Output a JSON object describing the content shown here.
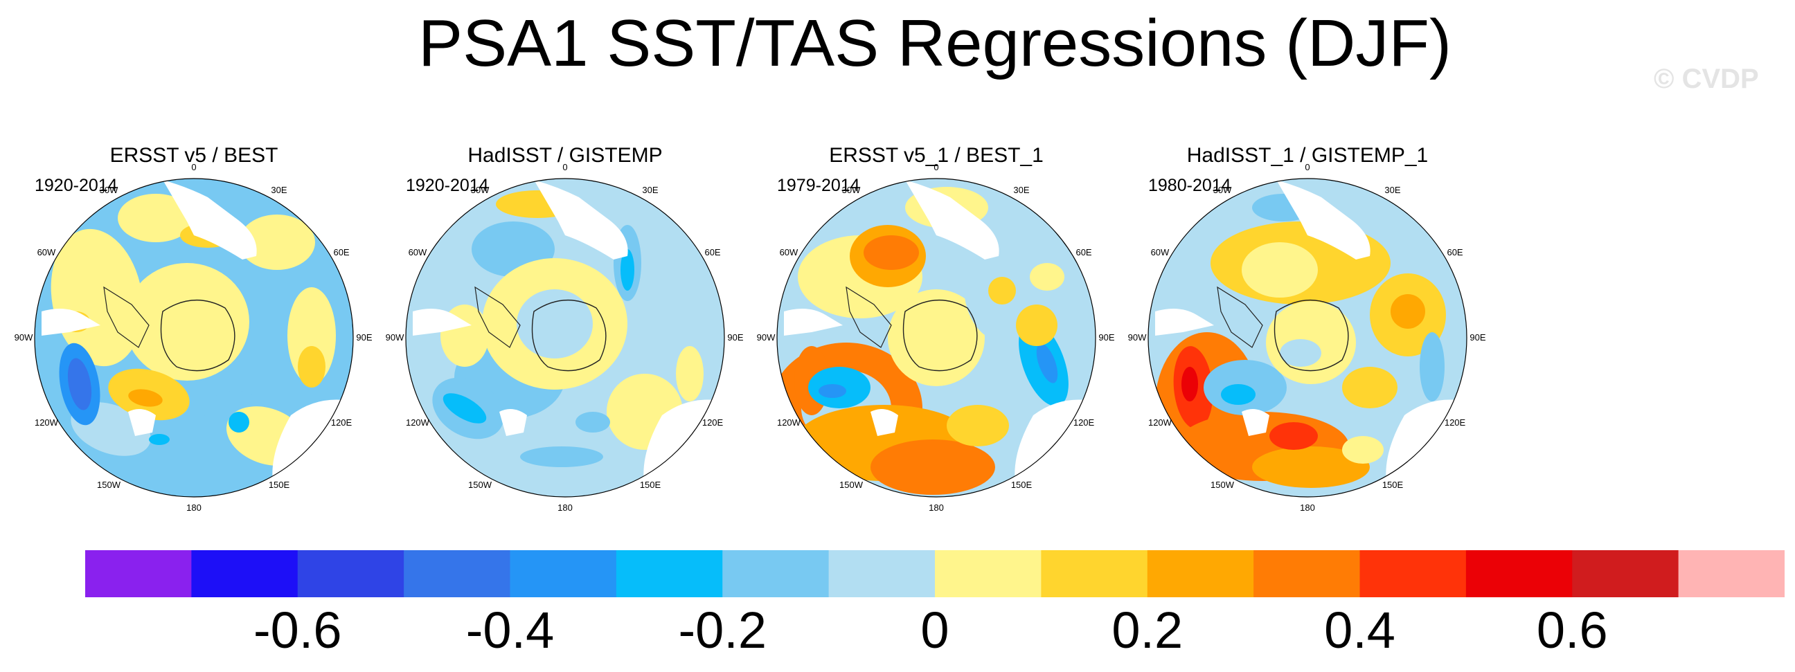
{
  "title": "PSA1 SST/TAS Regressions (DJF)",
  "watermark": "© CVDP",
  "panels": [
    {
      "title": "ERSST v5 / BEST",
      "period": "1920-2014"
    },
    {
      "title": "HadISST / GISTEMP",
      "period": "1920-2014"
    },
    {
      "title": "ERSST v5_1 / BEST_1",
      "period": "1979-2014"
    },
    {
      "title": "HadISST_1 / GISTEMP_1",
      "period": "1980-2014"
    }
  ],
  "longitude_labels": [
    "0",
    "30E",
    "60E",
    "90E",
    "120E",
    "150E",
    "180",
    "150W",
    "120W",
    "90W",
    "60W",
    "30W"
  ],
  "colorbar": {
    "colors": [
      "#8a21ee",
      "#1d0ff7",
      "#2f44e6",
      "#3575ea",
      "#2595f6",
      "#06bdfa",
      "#78c9f2",
      "#b2def2",
      "#fff58c",
      "#ffd52e",
      "#ffa802",
      "#ff7c05",
      "#ff3309",
      "#eb0106",
      "#d01c1e",
      "#ffb4b4"
    ],
    "tick_labels": [
      "-0.6",
      "-0.4",
      "-0.2",
      "0",
      "0.2",
      "0.4",
      "0.6"
    ]
  },
  "chart_data": {
    "type": "heatmap",
    "title": "PSA1 SST/TAS Regressions (DJF)",
    "projection": "south polar stereographic",
    "panels": [
      {
        "name": "ERSST v5 / BEST",
        "period": "1920-2014",
        "features": [
          {
            "region": "Antarctic continent",
            "value": 0.05
          },
          {
            "region": "Ring around Antarctica",
            "value": -0.15
          },
          {
            "region": "Amundsen-Bellingshausen Sea (120W)",
            "value": -0.3
          },
          {
            "region": "South Pacific (150W-180)",
            "value": 0.15
          },
          {
            "region": "Southern Indian Ocean (120E)",
            "value": 0.1
          },
          {
            "region": "South Atlantic (0-30E)",
            "value": 0.1
          }
        ]
      },
      {
        "name": "HadISST / GISTEMP",
        "period": "1920-2014",
        "features": [
          {
            "region": "Antarctic continent",
            "value": 0.05
          },
          {
            "region": "Southern Ocean (broad)",
            "value": -0.1
          },
          {
            "region": "South Pacific (150W)",
            "value": -0.2
          },
          {
            "region": "South Atlantic (0)",
            "value": 0.15
          },
          {
            "region": "Indian Ocean (60E)",
            "value": -0.2
          }
        ]
      },
      {
        "name": "ERSST v5_1 / BEST_1",
        "period": "1979-2014",
        "features": [
          {
            "region": "Antarctic continent",
            "value": 0.05
          },
          {
            "region": "South Pacific arc (90W-180)",
            "value": 0.3
          },
          {
            "region": "Amundsen Sea (120W)",
            "value": -0.25
          },
          {
            "region": "South Atlantic (0-30W)",
            "value": 0.3
          },
          {
            "region": "Indian Ocean (90E)",
            "value": -0.3
          },
          {
            "region": "Ross Sea (150E)",
            "value": 0.2
          }
        ]
      },
      {
        "name": "HadISST_1 / GISTEMP_1",
        "period": "1980-2014",
        "features": [
          {
            "region": "Antarctic continent",
            "value": -0.05
          },
          {
            "region": "South Pacific arc (90W-180)",
            "value": 0.35
          },
          {
            "region": "Pacific core (100W)",
            "value": 0.55
          },
          {
            "region": "Amundsen Sea (120W)",
            "value": -0.3
          },
          {
            "region": "Indian Ocean (60E)",
            "value": 0.2
          },
          {
            "region": "Indian Ocean (90E)",
            "value": -0.2
          }
        ]
      }
    ],
    "colorbar": {
      "levels": [
        -0.7,
        -0.6,
        -0.5,
        -0.4,
        -0.3,
        -0.2,
        -0.1,
        0,
        0.1,
        0.2,
        0.3,
        0.4,
        0.5,
        0.6,
        0.7
      ],
      "tick_values": [
        -0.6,
        -0.4,
        -0.2,
        0,
        0.2,
        0.4,
        0.6
      ]
    }
  }
}
